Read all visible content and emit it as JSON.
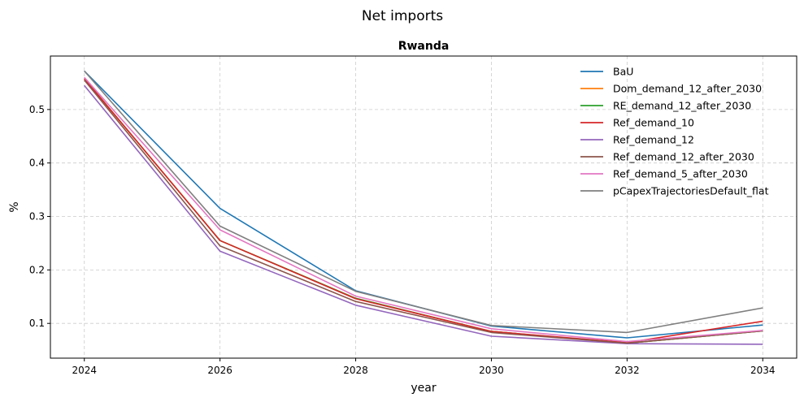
{
  "chart_data": {
    "type": "line",
    "suptitle": "Net imports",
    "title": "Rwanda",
    "xlabel": "year",
    "ylabel": "%",
    "x": [
      2024,
      2026,
      2028,
      2030,
      2032,
      2034
    ],
    "xticks": [
      "2024",
      "2026",
      "2028",
      "2030",
      "2032",
      "2034"
    ],
    "yticks": [
      "0.1",
      "0.2",
      "0.3",
      "0.4",
      "0.5"
    ],
    "xlim": [
      2023.5,
      2034.5
    ],
    "ylim": [
      0.035,
      0.6
    ],
    "grid": true,
    "legend_position": "top-right",
    "series": [
      {
        "name": "BaU",
        "color": "#1f77b4",
        "values": [
          0.572,
          0.315,
          0.161,
          0.095,
          0.073,
          0.097
        ]
      },
      {
        "name": "Dom_demand_12_after_2030",
        "color": "#ff7f0e",
        "values": [
          0.558,
          0.255,
          0.147,
          0.085,
          0.063,
          0.086
        ]
      },
      {
        "name": "RE_demand_12_after_2030",
        "color": "#2ca02c",
        "values": [
          0.558,
          0.255,
          0.147,
          0.085,
          0.063,
          0.086
        ]
      },
      {
        "name": "Ref_demand_10",
        "color": "#d62728",
        "values": [
          0.558,
          0.255,
          0.146,
          0.085,
          0.064,
          0.104
        ]
      },
      {
        "name": "Ref_demand_12",
        "color": "#9467bd",
        "values": [
          0.545,
          0.235,
          0.134,
          0.076,
          0.062,
          0.061
        ]
      },
      {
        "name": "Ref_demand_12_after_2030",
        "color": "#8c564b",
        "values": [
          0.555,
          0.245,
          0.141,
          0.083,
          0.063,
          0.086
        ]
      },
      {
        "name": "Ref_demand_5_after_2030",
        "color": "#e377c2",
        "values": [
          0.56,
          0.275,
          0.151,
          0.09,
          0.066,
          0.087
        ]
      },
      {
        "name": "pCapexTrajectoriesDefault_flat",
        "color": "#7f7f7f",
        "values": [
          0.572,
          0.282,
          0.16,
          0.096,
          0.083,
          0.129
        ]
      }
    ]
  }
}
